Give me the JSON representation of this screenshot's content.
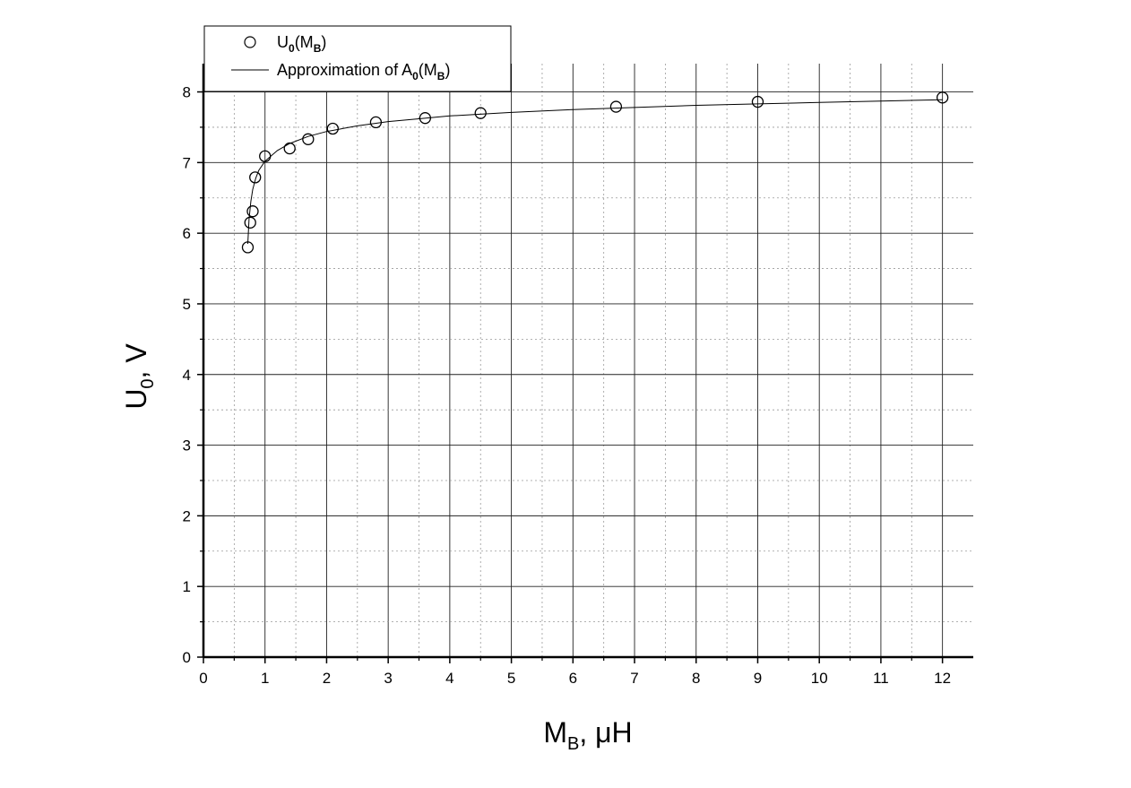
{
  "chart_data": {
    "type": "scatter",
    "x_axis": {
      "label_main": "M",
      "label_sub": "B",
      "label_rest": ", μH",
      "range": [
        0,
        12.5
      ],
      "ticks": [
        0,
        1,
        2,
        3,
        4,
        5,
        6,
        7,
        8,
        9,
        10,
        11,
        12
      ],
      "tick_labels": [
        "0",
        "1",
        "2",
        "3",
        "4",
        "5",
        "6",
        "7",
        "8",
        "9",
        "10",
        "11",
        "12"
      ]
    },
    "y_axis": {
      "label_main": "U",
      "label_sub": "0",
      "label_rest": ", V",
      "range": [
        0,
        8.4
      ],
      "ticks": [
        0,
        1,
        2,
        3,
        4,
        5,
        6,
        7,
        8
      ],
      "tick_labels": [
        "0",
        "1",
        "2",
        "3",
        "4",
        "5",
        "6",
        "7",
        "8"
      ]
    },
    "grid": true,
    "legend": {
      "placement": "top-left",
      "entries": [
        {
          "kind": "marker",
          "main": "U",
          "sub1": "0",
          "mid": "(M",
          "sub2": "B",
          "end": ")"
        },
        {
          "kind": "line",
          "main": "Approximation of A",
          "sub1": "0",
          "mid": "(M",
          "sub2": "B",
          "end": ")"
        }
      ]
    },
    "series": [
      {
        "kind": "marker",
        "points": [
          [
            0.72,
            5.8
          ],
          [
            0.76,
            6.15
          ],
          [
            0.8,
            6.31
          ],
          [
            0.84,
            6.79
          ],
          [
            1.0,
            7.09
          ],
          [
            1.4,
            7.2
          ],
          [
            1.7,
            7.33
          ],
          [
            2.1,
            7.48
          ],
          [
            2.8,
            7.57
          ],
          [
            3.6,
            7.63
          ],
          [
            4.5,
            7.7
          ],
          [
            6.7,
            7.79
          ],
          [
            9.0,
            7.86
          ],
          [
            12.0,
            7.92
          ]
        ]
      },
      {
        "kind": "line",
        "points": [
          [
            0.72,
            5.85
          ],
          [
            0.74,
            6.2
          ],
          [
            0.77,
            6.45
          ],
          [
            0.8,
            6.62
          ],
          [
            0.85,
            6.78
          ],
          [
            0.9,
            6.89
          ],
          [
            1.0,
            7.02
          ],
          [
            1.2,
            7.17
          ],
          [
            1.4,
            7.27
          ],
          [
            1.7,
            7.37
          ],
          [
            2.0,
            7.44
          ],
          [
            2.5,
            7.52
          ],
          [
            3.0,
            7.58
          ],
          [
            3.5,
            7.62
          ],
          [
            4.0,
            7.66
          ],
          [
            5.0,
            7.71
          ],
          [
            6.0,
            7.75
          ],
          [
            7.0,
            7.78
          ],
          [
            8.0,
            7.81
          ],
          [
            9.0,
            7.83
          ],
          [
            10.0,
            7.85
          ],
          [
            11.0,
            7.87
          ],
          [
            12.0,
            7.89
          ]
        ]
      }
    ]
  }
}
